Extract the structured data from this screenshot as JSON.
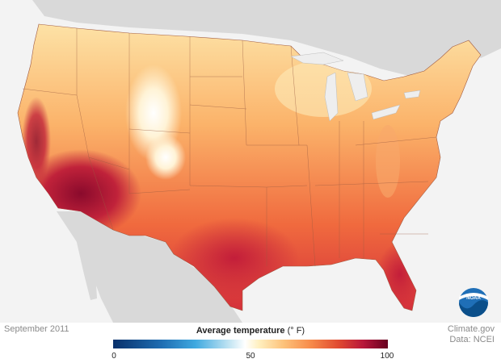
{
  "date_label": "September 2011",
  "legend": {
    "title": "Average temperature",
    "unit": "(° F)",
    "min": "0",
    "mid": "50",
    "max": "100"
  },
  "credit": {
    "line1": "Climate.gov",
    "line2": "Data: NCEI"
  },
  "logo": {
    "text": "NOAA"
  },
  "colors": {
    "background": "#f3f3f3",
    "land_neighbors": "#d9d9d9",
    "hot": "#b8173a",
    "warm": "#f0643a",
    "mild": "#fdc27a",
    "cool": "#ffffff"
  }
}
